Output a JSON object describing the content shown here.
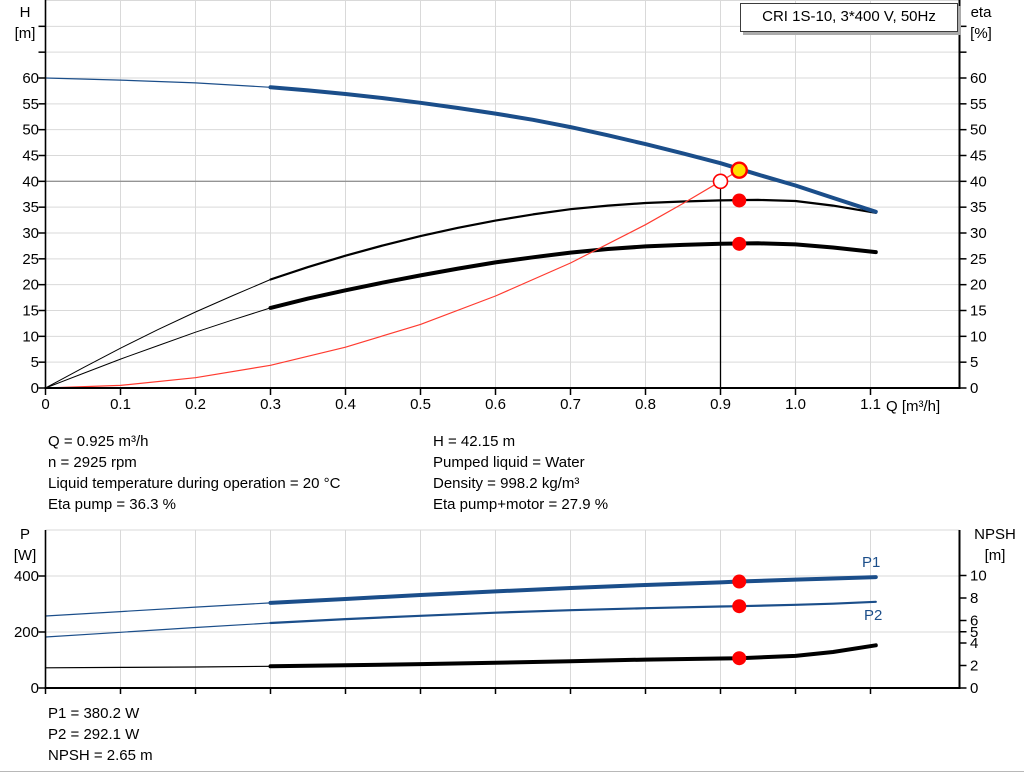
{
  "title_box": {
    "label": "CRI 1S-10, 3*400 V, 50Hz"
  },
  "colors": {
    "curve_blue": "#1b4e8a",
    "curve_black": "#000000",
    "system_red": "#ff3b30",
    "marker_red": "#ff0000",
    "op_yellow": "#ffe000",
    "grid": "#d9d9d9",
    "grid_emphasis": "#949494",
    "axis": "#000000"
  },
  "info": {
    "left": [
      "Q = 0.925 m³/h",
      "n = 2925 rpm",
      "Liquid temperature during operation = 20 °C",
      "Eta pump = 36.3 %"
    ],
    "right": [
      "H = 42.15 m",
      "Pumped liquid = Water",
      "Density = 998.2 kg/m³",
      "Eta pump+motor = 27.9 %"
    ]
  },
  "results": [
    "P1 = 380.2 W",
    "P2 = 292.1 W",
    "NPSH = 2.65 m"
  ],
  "chart_data": [
    {
      "type": "line",
      "title": "CRI 1S-10, 3*400 V, 50Hz",
      "y_title": "H",
      "y_unit": "[m]",
      "y2_title": "eta",
      "y2_unit": "[%]",
      "x_unit": "Q [m³/h]",
      "xlim": [
        0,
        1.22
      ],
      "ylim": [
        0,
        75
      ],
      "x_ticks": [
        0,
        0.1,
        0.2,
        0.3,
        0.4,
        0.5,
        0.6,
        0.7,
        0.8,
        0.9,
        1.0,
        1.1
      ],
      "x_tick_labels": [
        "0",
        "0.1",
        "0.2",
        "0.3",
        "0.4",
        "0.5",
        "0.6",
        "0.7",
        "0.8",
        "0.9",
        "1.0",
        "1.1"
      ],
      "y_ticks": [
        0,
        5,
        10,
        15,
        20,
        25,
        30,
        35,
        40,
        45,
        50,
        55,
        60
      ],
      "y_ticks_minor": [
        65,
        70
      ],
      "duty_point": {
        "q": 0.9,
        "h": 40
      },
      "operating_point": {
        "q": 0.925,
        "h": 42.15
      },
      "eta_pump_point": {
        "q": 0.925,
        "v": 36.3
      },
      "eta_total_point": {
        "q": 0.925,
        "v": 27.9
      },
      "series": [
        {
          "name": "eta-pump",
          "color": "black",
          "w_thin": 1,
          "w_thick": 2.2,
          "thick_from": 0.3,
          "points": [
            [
              0,
              0
            ],
            [
              0.05,
              3.9
            ],
            [
              0.1,
              7.7
            ],
            [
              0.15,
              11.3
            ],
            [
              0.2,
              14.7
            ],
            [
              0.25,
              17.9
            ],
            [
              0.3,
              21.0
            ],
            [
              0.35,
              23.4
            ],
            [
              0.4,
              25.6
            ],
            [
              0.45,
              27.6
            ],
            [
              0.5,
              29.4
            ],
            [
              0.55,
              31.0
            ],
            [
              0.6,
              32.4
            ],
            [
              0.65,
              33.6
            ],
            [
              0.7,
              34.6
            ],
            [
              0.75,
              35.3
            ],
            [
              0.8,
              35.8
            ],
            [
              0.85,
              36.1
            ],
            [
              0.9,
              36.3
            ],
            [
              0.95,
              36.4
            ],
            [
              1.0,
              36.2
            ],
            [
              1.05,
              35.3
            ],
            [
              1.107,
              33.9
            ]
          ]
        },
        {
          "name": "eta-pump-motor",
          "color": "black",
          "w_thin": 1,
          "w_thick": 4,
          "thick_from": 0.3,
          "points": [
            [
              0,
              0
            ],
            [
              0.05,
              2.8
            ],
            [
              0.1,
              5.6
            ],
            [
              0.15,
              8.2
            ],
            [
              0.2,
              10.8
            ],
            [
              0.25,
              13.2
            ],
            [
              0.3,
              15.5
            ],
            [
              0.35,
              17.3
            ],
            [
              0.4,
              18.9
            ],
            [
              0.45,
              20.4
            ],
            [
              0.5,
              21.8
            ],
            [
              0.55,
              23.1
            ],
            [
              0.6,
              24.3
            ],
            [
              0.65,
              25.3
            ],
            [
              0.7,
              26.2
            ],
            [
              0.75,
              26.9
            ],
            [
              0.8,
              27.4
            ],
            [
              0.85,
              27.7
            ],
            [
              0.9,
              27.9
            ],
            [
              0.95,
              28.0
            ],
            [
              1.0,
              27.8
            ],
            [
              1.05,
              27.2
            ],
            [
              1.107,
              26.3
            ]
          ]
        },
        {
          "name": "system-curve",
          "color": "red",
          "w_thin": 1.2,
          "w_thick": 1.2,
          "thick_from": 9,
          "points": [
            [
              0,
              0
            ],
            [
              0.1,
              0.5
            ],
            [
              0.2,
              2.0
            ],
            [
              0.3,
              4.4
            ],
            [
              0.4,
              7.9
            ],
            [
              0.5,
              12.3
            ],
            [
              0.6,
              17.8
            ],
            [
              0.7,
              24.2
            ],
            [
              0.8,
              31.6
            ],
            [
              0.85,
              35.7
            ],
            [
              0.9,
              40.0
            ],
            [
              0.925,
              42.15
            ]
          ]
        },
        {
          "name": "head",
          "color": "blue",
          "w_thin": 1.2,
          "w_thick": 4,
          "thick_from": 0.3,
          "points": [
            [
              0,
              60
            ],
            [
              0.1,
              59.6
            ],
            [
              0.2,
              59.05
            ],
            [
              0.3,
              58.2
            ],
            [
              0.35,
              57.6
            ],
            [
              0.4,
              56.9
            ],
            [
              0.45,
              56.1
            ],
            [
              0.5,
              55.2
            ],
            [
              0.55,
              54.2
            ],
            [
              0.6,
              53.1
            ],
            [
              0.65,
              51.9
            ],
            [
              0.7,
              50.5
            ],
            [
              0.75,
              48.9
            ],
            [
              0.8,
              47.2
            ],
            [
              0.85,
              45.4
            ],
            [
              0.9,
              43.5
            ],
            [
              0.95,
              41.3
            ],
            [
              1.0,
              39.2
            ],
            [
              1.05,
              36.8
            ],
            [
              1.107,
              34.1
            ]
          ]
        }
      ]
    },
    {
      "type": "line",
      "y_title": "P",
      "y_unit": "[W]",
      "y2_title": "NPSH",
      "y2_unit": "[m]",
      "series_labels": {
        "p1": "P1",
        "p2": "P2"
      },
      "xlim": [
        0,
        1.22
      ],
      "ylim_P": [
        0,
        560
      ],
      "ylim_NPSH": [
        0,
        14
      ],
      "x_ticks": [
        0,
        0.1,
        0.2,
        0.3,
        0.4,
        0.5,
        0.6,
        0.7,
        0.8,
        0.9,
        1.0,
        1.1
      ],
      "y_ticks_P": [
        0,
        200,
        400
      ],
      "y_ticks_NPSH": [
        0,
        2,
        4,
        5,
        6,
        8,
        10
      ],
      "p1_point": {
        "q": 0.925,
        "v": 380.2
      },
      "p2_point": {
        "q": 0.925,
        "v": 292.1
      },
      "npsh_point": {
        "q": 0.925,
        "v": 2.65
      },
      "series": [
        {
          "name": "P1",
          "axis": "P",
          "color": "blue",
          "w_thin": 1.2,
          "w_thick": 4,
          "thick_from": 0.3,
          "points": [
            [
              0,
              257
            ],
            [
              0.1,
              273
            ],
            [
              0.2,
              289
            ],
            [
              0.3,
              304
            ],
            [
              0.4,
              318
            ],
            [
              0.5,
              332
            ],
            [
              0.6,
              345
            ],
            [
              0.7,
              357
            ],
            [
              0.8,
              368
            ],
            [
              0.9,
              377
            ],
            [
              0.925,
              380.2
            ],
            [
              1.0,
              387
            ],
            [
              1.05,
              391
            ],
            [
              1.107,
              396
            ]
          ]
        },
        {
          "name": "P2",
          "axis": "P",
          "color": "blue",
          "w_thin": 1.2,
          "w_thick": 2.2,
          "thick_from": 0.3,
          "points": [
            [
              0,
              182
            ],
            [
              0.1,
              199
            ],
            [
              0.2,
              216
            ],
            [
              0.3,
              232
            ],
            [
              0.4,
              246
            ],
            [
              0.5,
              258
            ],
            [
              0.6,
              269
            ],
            [
              0.7,
              278
            ],
            [
              0.8,
              285
            ],
            [
              0.9,
              291
            ],
            [
              0.925,
              292.1
            ],
            [
              1.0,
              297
            ],
            [
              1.05,
              301
            ],
            [
              1.107,
              308
            ]
          ]
        },
        {
          "name": "NPSH",
          "axis": "N",
          "color": "black",
          "w_thin": 1.2,
          "w_thick": 4,
          "thick_from": 0.3,
          "points": [
            [
              0,
              1.8
            ],
            [
              0.1,
              1.83
            ],
            [
              0.2,
              1.87
            ],
            [
              0.3,
              1.93
            ],
            [
              0.4,
              2.02
            ],
            [
              0.5,
              2.12
            ],
            [
              0.6,
              2.24
            ],
            [
              0.7,
              2.38
            ],
            [
              0.8,
              2.52
            ],
            [
              0.9,
              2.62
            ],
            [
              0.925,
              2.65
            ],
            [
              1.0,
              2.85
            ],
            [
              1.05,
              3.2
            ],
            [
              1.107,
              3.8
            ]
          ]
        }
      ]
    }
  ]
}
